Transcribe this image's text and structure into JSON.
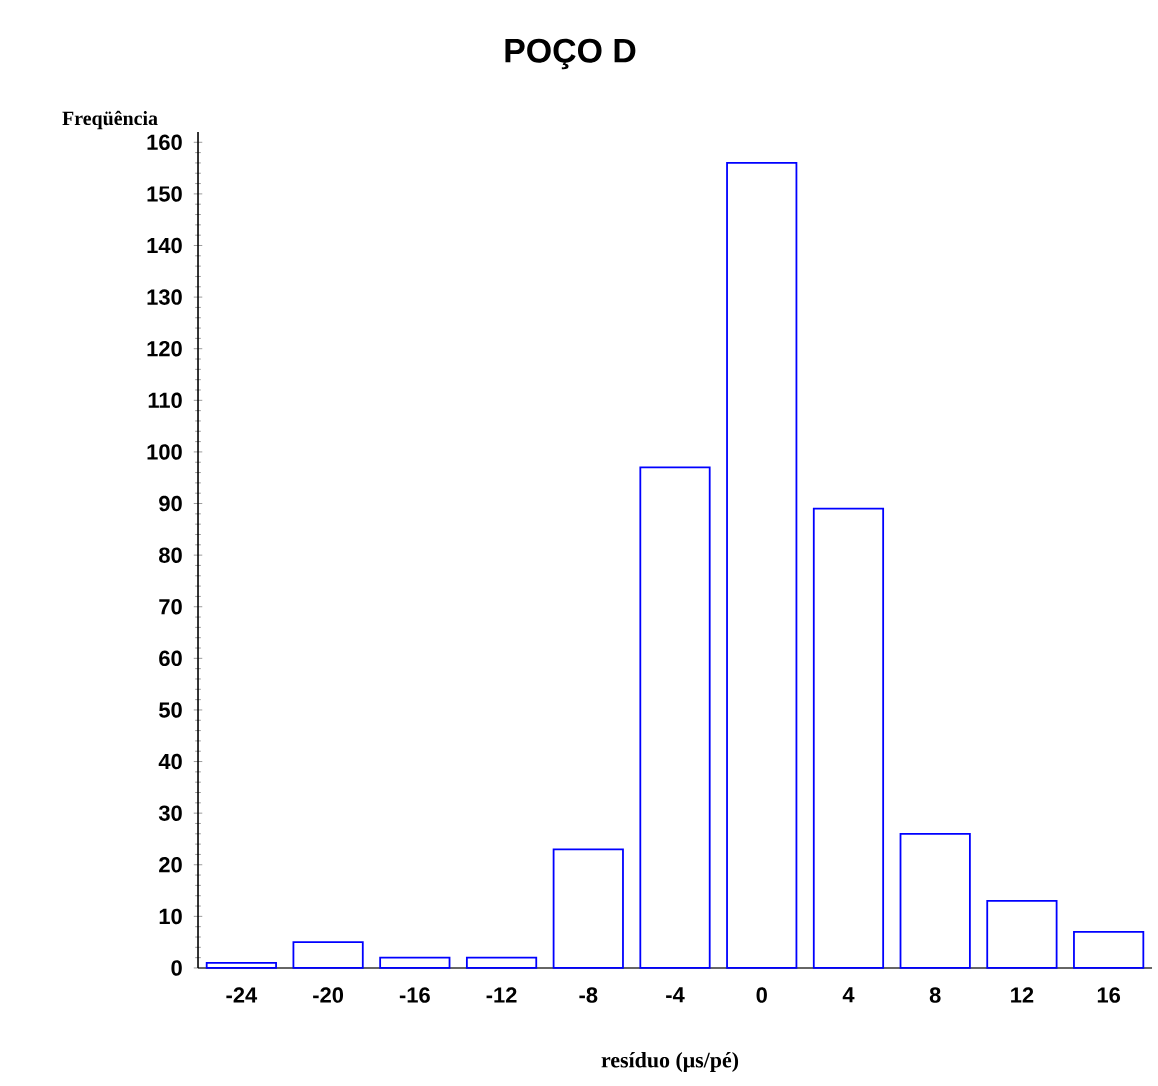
{
  "chart_data": {
    "type": "bar",
    "title": "POÇO D",
    "xlabel": "resíduo (μs/pé)",
    "ylabel": "Freqüência",
    "x": [
      -24,
      -20,
      -16,
      -12,
      -8,
      -4,
      0,
      4,
      8,
      12,
      16
    ],
    "values": [
      1,
      5,
      2,
      2,
      23,
      97,
      156,
      89,
      26,
      13,
      7
    ],
    "color": "#0000ff",
    "xlim": [
      -26,
      18
    ],
    "xticks": [
      -24,
      -20,
      -16,
      -12,
      -8,
      -4,
      0,
      4,
      8,
      12,
      16
    ],
    "yticks": [
      0,
      10,
      20,
      30,
      40,
      50,
      60,
      70,
      80,
      90,
      100,
      110,
      120,
      130,
      140,
      150,
      160
    ],
    "ylim": [
      0,
      162
    ]
  }
}
